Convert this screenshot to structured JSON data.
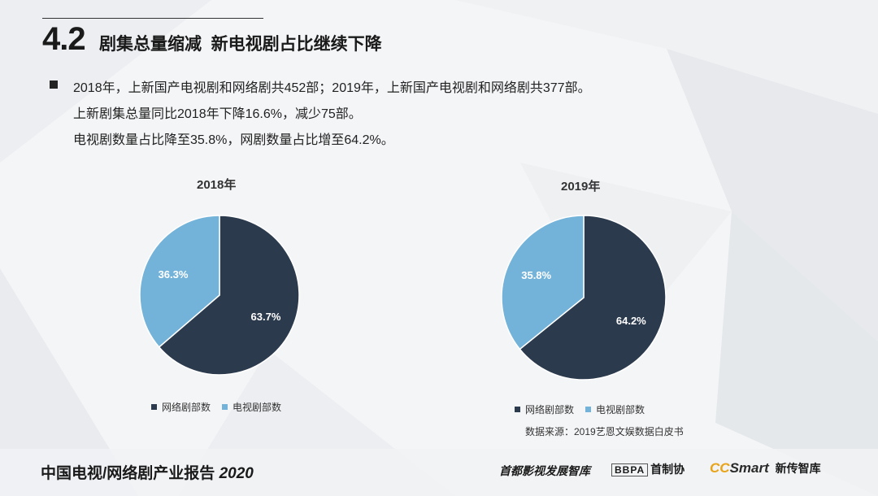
{
  "header": {
    "section_number": "4.2",
    "section_title": "剧集总量缩减  新电视剧占比继续下降"
  },
  "bullets": [
    "2018年，上新国产电视剧和网络剧共452部；2019年，上新国产电视剧和网络剧共377部。",
    "上新剧集总量同比2018年下降16.6%，减少75部。",
    "电视剧数量占比降至35.8%，网剧数量占比增至64.2%。"
  ],
  "colors": {
    "web": "#2c3a4e",
    "tv": "#74b3d9"
  },
  "chart_data": [
    {
      "type": "pie",
      "title": "2018年",
      "slices": [
        {
          "name": "网络剧部数",
          "value": 63.7,
          "label": "63.7%"
        },
        {
          "name": "电视剧部数",
          "value": 36.3,
          "label": "36.3%"
        }
      ],
      "legend": [
        "网络剧部数",
        "电视剧部数"
      ],
      "legend_position": "bottom"
    },
    {
      "type": "pie",
      "title": "2019年",
      "slices": [
        {
          "name": "网络剧部数",
          "value": 64.2,
          "label": "64.2%"
        },
        {
          "name": "电视剧部数",
          "value": 35.8,
          "label": "35.8%"
        }
      ],
      "legend": [
        "网络剧部数",
        "电视剧部数"
      ],
      "legend_position": "bottom"
    }
  ],
  "source": "数据来源：2019艺恩文娱数据白皮书",
  "footer": {
    "report_title": "中国电视/网络剧产业报告",
    "report_year": "2020",
    "logo1": "首都影视发展智库",
    "logo2_box": "BBPA",
    "logo2_text": "首制协",
    "logo3_cc": "CC",
    "logo3_smart": "Smart",
    "logo3_text": "新传智库"
  }
}
